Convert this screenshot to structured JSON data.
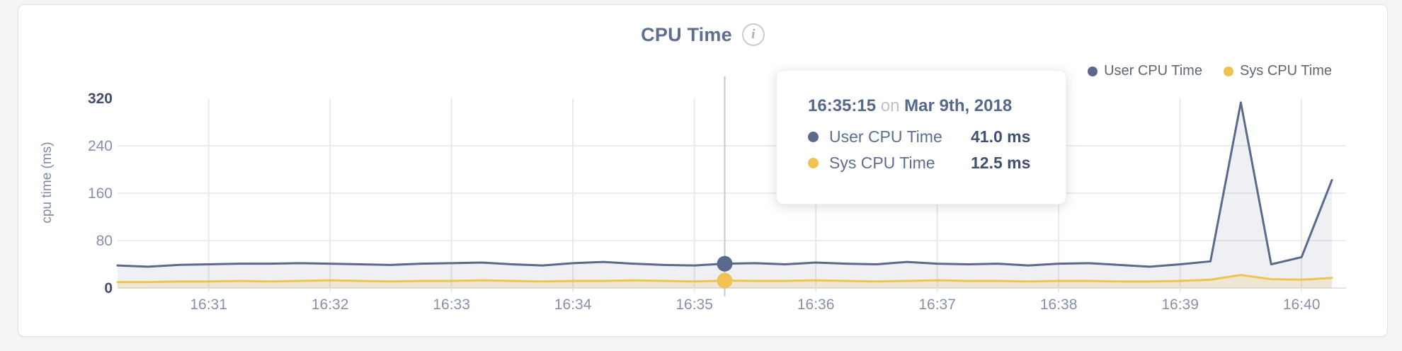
{
  "header": {
    "title": "CPU Time",
    "info_glyph": "i"
  },
  "legend": {
    "items": [
      {
        "label": "User CPU Time",
        "color": "#5b6a8c"
      },
      {
        "label": "Sys CPU Time",
        "color": "#eec351"
      }
    ]
  },
  "tooltip": {
    "time": "16:35:15",
    "connector": "on",
    "date": "Mar 9th, 2018",
    "rows": [
      {
        "label": "User CPU Time",
        "value": "41.0 ms",
        "color": "#5b6a8c"
      },
      {
        "label": "Sys CPU Time",
        "value": "12.5 ms",
        "color": "#eec351"
      }
    ]
  },
  "chart_data": {
    "type": "area",
    "title": "CPU Time",
    "xlabel": "",
    "ylabel": "cpu time (ms)",
    "ylim": [
      0,
      320
    ],
    "y_ticks": [
      0,
      80,
      160,
      240,
      320
    ],
    "x_tick_labels": [
      "16:31",
      "16:32",
      "16:33",
      "16:34",
      "16:35",
      "16:36",
      "16:37",
      "16:38",
      "16:39",
      "16:40"
    ],
    "x_range": [
      "16:30:15",
      "16:40:15"
    ],
    "grid": true,
    "legend_position": "top-right",
    "hover_index": 20,
    "times": [
      "16:30:15",
      "16:30:30",
      "16:30:45",
      "16:31:00",
      "16:31:15",
      "16:31:30",
      "16:31:45",
      "16:32:00",
      "16:32:15",
      "16:32:30",
      "16:32:45",
      "16:33:00",
      "16:33:15",
      "16:33:30",
      "16:33:45",
      "16:34:00",
      "16:34:15",
      "16:34:30",
      "16:34:45",
      "16:35:00",
      "16:35:15",
      "16:35:30",
      "16:35:45",
      "16:36:00",
      "16:36:15",
      "16:36:30",
      "16:36:45",
      "16:37:00",
      "16:37:15",
      "16:37:30",
      "16:37:45",
      "16:38:00",
      "16:38:15",
      "16:38:30",
      "16:38:45",
      "16:39:00",
      "16:39:15",
      "16:39:30",
      "16:39:45",
      "16:40:00",
      "16:40:15"
    ],
    "series": [
      {
        "name": "User CPU Time",
        "color": "#5b6a8c",
        "fill": "rgba(91,106,140,0.10)",
        "values": [
          38,
          36,
          39,
          40,
          41,
          41,
          42,
          41,
          40,
          39,
          41,
          42,
          43,
          40,
          38,
          42,
          44,
          41,
          39,
          38,
          41,
          42,
          40,
          43,
          41,
          40,
          44,
          41,
          40,
          41,
          38,
          41,
          42,
          39,
          36,
          40,
          45,
          313,
          40,
          52,
          182
        ]
      },
      {
        "name": "Sys CPU Time",
        "color": "#eec351",
        "fill": "rgba(238,195,81,0.20)",
        "values": [
          10,
          10,
          11,
          11,
          12,
          11,
          12,
          13,
          12,
          11,
          12,
          12,
          13,
          12,
          11,
          12,
          12,
          13,
          12,
          11,
          12.5,
          12,
          12,
          13,
          12,
          11,
          12,
          13,
          12,
          12,
          11,
          12,
          12,
          11,
          11,
          12,
          14,
          22,
          15,
          14,
          17
        ]
      }
    ],
    "colors": {
      "grid_vertical": "#e9e9ec",
      "grid_horizontal": "#ededf0",
      "baseline": "#e4e4e7",
      "hover_line": "#c7c7c9",
      "tick_mid": "#8691a8",
      "tick_edge": "#3f4e6e"
    }
  }
}
